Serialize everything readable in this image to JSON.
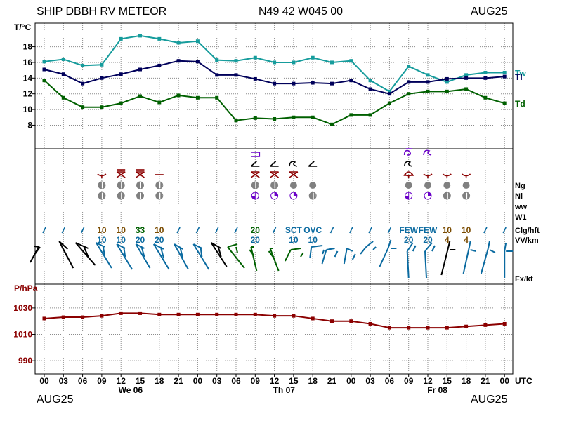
{
  "header": {
    "title": "SHIP DBBH RV METEOR",
    "position": "N49 42 W045 00",
    "date_top": "AUG25",
    "date_bottom_left": "AUG25",
    "date_bottom_right": "AUG25"
  },
  "colors": {
    "tw": "#169c9c",
    "tl": "#00005a",
    "td": "#006000",
    "pressure": "#8b0000",
    "grid": "#8c8c8c",
    "cloud_green": "#006000",
    "cloud_brown": "#7a4b00",
    "cloud_blue": "#0a6aa0",
    "weather_red": "#8b0000",
    "weather_violet": "#6a00c8",
    "cover_grey": "#808080"
  },
  "x_axis": {
    "ticks": [
      "00",
      "03",
      "06",
      "09",
      "12",
      "15",
      "18",
      "21",
      "00",
      "03",
      "06",
      "09",
      "12",
      "15",
      "18",
      "21",
      "00",
      "03",
      "06",
      "09",
      "12",
      "15",
      "18",
      "21",
      "00"
    ],
    "unit": "UTC",
    "days": [
      {
        "label": "We 06",
        "at_tick": 4.5
      },
      {
        "label": "Th 07",
        "at_tick": 12.5
      },
      {
        "label": "Fr 08",
        "at_tick": 20.5
      }
    ]
  },
  "row_labels": [
    "Ng",
    "Nl",
    "ww",
    "W1",
    "Clg/hft",
    "VV/km",
    "Fx/kt"
  ],
  "cloud_rows": {
    "clg": [
      {
        "t": 3,
        "text": "10",
        "color": "cloud_brown"
      },
      {
        "t": 4,
        "text": "10",
        "color": "cloud_brown"
      },
      {
        "t": 5,
        "text": "33",
        "color": "cloud_green"
      },
      {
        "t": 6,
        "text": "10",
        "color": "cloud_brown"
      },
      {
        "t": 11,
        "text": "20",
        "color": "cloud_green"
      },
      {
        "t": 13,
        "text": "SCT",
        "color": "cloud_blue"
      },
      {
        "t": 14,
        "text": "OVC",
        "color": "cloud_blue"
      },
      {
        "t": 19,
        "text": "FEW",
        "color": "cloud_blue"
      },
      {
        "t": 20,
        "text": "FEW",
        "color": "cloud_blue"
      },
      {
        "t": 21,
        "text": "10",
        "color": "cloud_brown"
      },
      {
        "t": 22,
        "text": "10",
        "color": "cloud_brown"
      }
    ],
    "vv": [
      {
        "t": 3,
        "text": "10",
        "color": "cloud_blue"
      },
      {
        "t": 4,
        "text": "10",
        "color": "cloud_blue"
      },
      {
        "t": 5,
        "text": "20",
        "color": "cloud_blue"
      },
      {
        "t": 6,
        "text": "20",
        "color": "cloud_blue"
      },
      {
        "t": 11,
        "text": "20",
        "color": "cloud_blue"
      },
      {
        "t": 13,
        "text": "10",
        "color": "cloud_blue"
      },
      {
        "t": 14,
        "text": "10",
        "color": "cloud_blue"
      },
      {
        "t": 19,
        "text": "20",
        "color": "cloud_blue"
      },
      {
        "t": 20,
        "text": "20",
        "color": "cloud_blue"
      },
      {
        "t": 21,
        "text": "4",
        "color": "cloud_brown"
      },
      {
        "t": 22,
        "text": "4",
        "color": "cloud_brown"
      }
    ]
  },
  "chart_data": [
    {
      "type": "line",
      "ylabel": "T/°C",
      "ylim": [
        5,
        21
      ],
      "yticks": [
        8,
        10,
        12,
        14,
        16,
        18
      ],
      "grid": true,
      "series": [
        {
          "name": "Tw",
          "color": "tw",
          "values": [
            16.1,
            16.4,
            15.6,
            15.7,
            19.0,
            19.4,
            19.0,
            18.5,
            18.7,
            16.3,
            16.2,
            16.6,
            16.0,
            16.0,
            16.6,
            16.0,
            16.2,
            13.7,
            12.3,
            15.5,
            14.4,
            13.5,
            14.4,
            14.7,
            14.7
          ]
        },
        {
          "name": "Tl",
          "color": "tl",
          "values": [
            15.1,
            14.5,
            13.3,
            14.0,
            14.5,
            15.1,
            15.6,
            16.2,
            16.1,
            14.4,
            14.4,
            13.9,
            13.3,
            13.3,
            13.4,
            13.3,
            13.7,
            12.6,
            12.0,
            13.5,
            13.5,
            13.9,
            14.0,
            14.0,
            14.2
          ]
        },
        {
          "name": "Td",
          "color": "td",
          "values": [
            13.7,
            11.5,
            10.3,
            10.3,
            10.8,
            11.7,
            10.9,
            11.8,
            11.5,
            11.5,
            8.6,
            8.9,
            8.8,
            9.0,
            9.0,
            8.1,
            9.3,
            9.3,
            10.8,
            12.0,
            12.3,
            12.3,
            12.6,
            11.5,
            10.8
          ]
        }
      ]
    },
    {
      "type": "line",
      "ylabel": "P/hPa",
      "ylim": [
        980,
        1048
      ],
      "yticks": [
        990,
        1010,
        1030
      ],
      "grid": true,
      "series": [
        {
          "name": "",
          "color": "pressure",
          "values": [
            1022,
            1023,
            1023,
            1024,
            1026,
            1026,
            1025,
            1025,
            1025,
            1025,
            1025,
            1025,
            1024,
            1024,
            1022,
            1020,
            1020,
            1018,
            1015,
            1015,
            1015,
            1015,
            1016,
            1017,
            1018
          ]
        }
      ]
    }
  ]
}
